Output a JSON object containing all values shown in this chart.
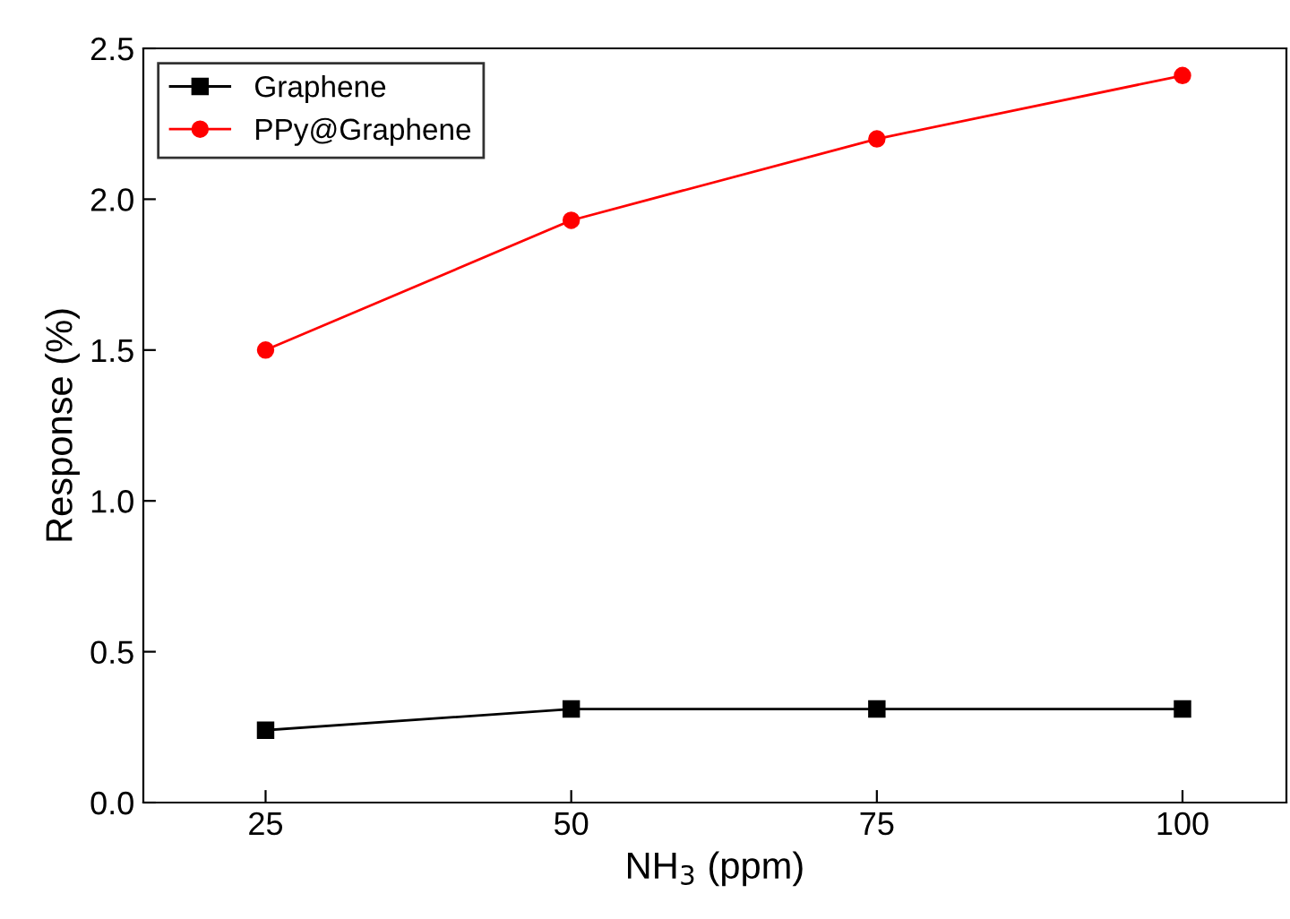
{
  "chart_data": {
    "type": "line",
    "xlabel": "NH$_{3}$ (ppm)",
    "ylabel": "Response (%)",
    "x": [
      25,
      50,
      75,
      100
    ],
    "series": [
      {
        "name": "Graphene",
        "color": "#000000",
        "marker": "square",
        "values": [
          0.24,
          0.31,
          0.31,
          0.31
        ]
      },
      {
        "name": "PPy@Graphene",
        "color": "#ff0000",
        "marker": "circle",
        "values": [
          1.5,
          1.93,
          2.2,
          2.41
        ]
      }
    ],
    "xlim": [
      15,
      108.5
    ],
    "xticks": [
      25,
      50,
      75,
      100
    ],
    "ylim": [
      0,
      2.5
    ],
    "yticks": [
      {
        "value": 0,
        "label": "0.0"
      },
      {
        "value": 0.5,
        "label": "0.5"
      },
      {
        "value": 1,
        "label": "1.0"
      },
      {
        "value": 1.5,
        "label": "1.5"
      },
      {
        "value": 2,
        "label": "2.0"
      },
      {
        "value": 2.5,
        "label": "2.5"
      }
    ],
    "grid": false,
    "legend": "top left",
    "line_style": "solid"
  }
}
